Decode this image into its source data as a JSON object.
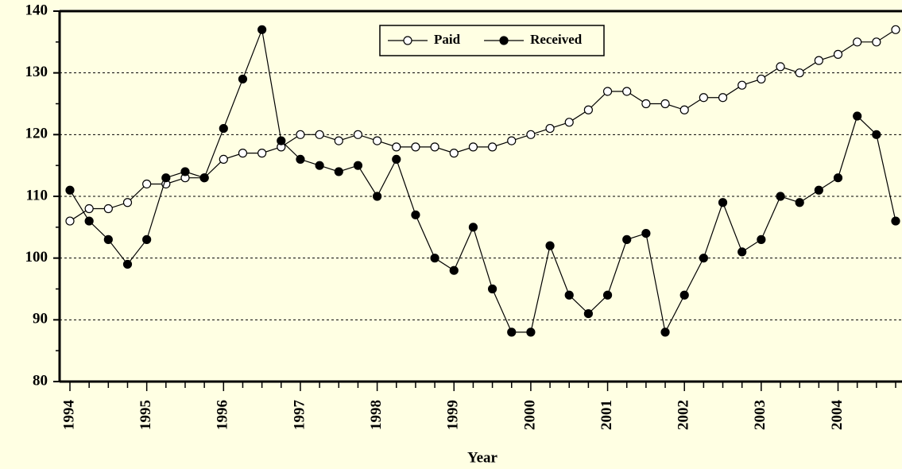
{
  "chart_data": {
    "type": "line",
    "x_label": "Year",
    "categories": [
      "1994",
      null,
      null,
      null,
      "1995",
      null,
      null,
      null,
      "1996",
      null,
      null,
      null,
      "1997",
      null,
      null,
      null,
      "1998",
      null,
      null,
      null,
      "1999",
      null,
      null,
      null,
      "2000",
      null,
      null,
      null,
      "2001",
      null,
      null,
      null,
      "2002",
      null,
      null,
      null,
      "2003",
      null,
      null,
      null,
      "2004",
      null,
      null,
      null
    ],
    "series": [
      {
        "name": "Paid",
        "color": "#000000",
        "marker_fill": "#ffffff",
        "values": [
          106,
          108,
          108,
          109,
          112,
          112,
          113,
          113,
          116,
          117,
          117,
          118,
          120,
          120,
          119,
          120,
          119,
          118,
          118,
          118,
          117,
          118,
          118,
          119,
          120,
          121,
          122,
          124,
          127,
          127,
          125,
          125,
          124,
          126,
          126,
          128,
          129,
          131,
          130,
          132,
          133,
          135,
          135,
          137
        ]
      },
      {
        "name": "Received",
        "color": "#000000",
        "marker_fill": "#000000",
        "values": [
          111,
          106,
          103,
          99,
          103,
          113,
          114,
          113,
          121,
          129,
          137,
          119,
          116,
          115,
          114,
          115,
          110,
          116,
          107,
          100,
          98,
          105,
          95,
          88,
          88,
          102,
          94,
          91,
          94,
          103,
          104,
          88,
          94,
          100,
          109,
          101,
          103,
          110,
          109,
          111,
          113,
          123,
          120,
          106
        ]
      }
    ],
    "ylim": [
      80,
      140
    ],
    "yticks": [
      80,
      90,
      100,
      110,
      120,
      130,
      140
    ],
    "grid": true,
    "legend": "upper center"
  }
}
